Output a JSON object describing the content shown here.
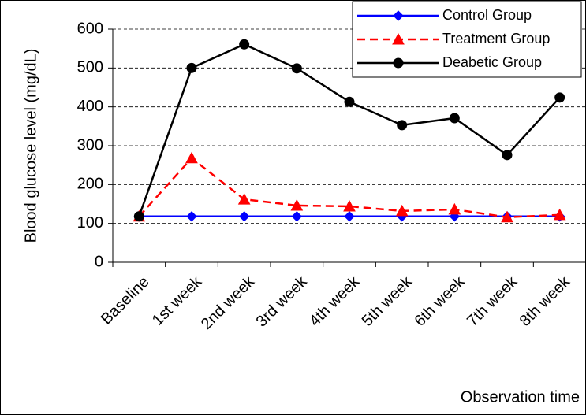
{
  "chart_data": {
    "type": "line",
    "x_label": "Observation time",
    "y_label": "Blood glucose level (mg/dL)",
    "categories": [
      "Baseline",
      "1st week",
      "2nd week",
      "3rd week",
      "4th week",
      "5th week",
      "6th week",
      "7th week",
      "8th week"
    ],
    "series": [
      {
        "name": "Control Group",
        "color": "#0000ff",
        "marker": "diamond",
        "linestyle": "solid",
        "values": [
          118,
          118,
          118,
          118,
          118,
          118,
          118,
          118,
          118
        ]
      },
      {
        "name": "Treatment Group",
        "color": "#ff0000",
        "marker": "triangle",
        "linestyle": "dashed",
        "values": [
          118,
          268,
          162,
          146,
          144,
          132,
          136,
          116,
          122
        ]
      },
      {
        "name": "Deabetic Group",
        "color": "#000000",
        "marker": "circle",
        "linestyle": "solid",
        "values": [
          118,
          500,
          561,
          499,
          413,
          353,
          371,
          276,
          424
        ]
      }
    ],
    "ylim": [
      0,
      600
    ],
    "yticks": [
      0,
      100,
      200,
      300,
      400,
      500,
      600
    ],
    "grid": true,
    "legend": "upper right"
  }
}
